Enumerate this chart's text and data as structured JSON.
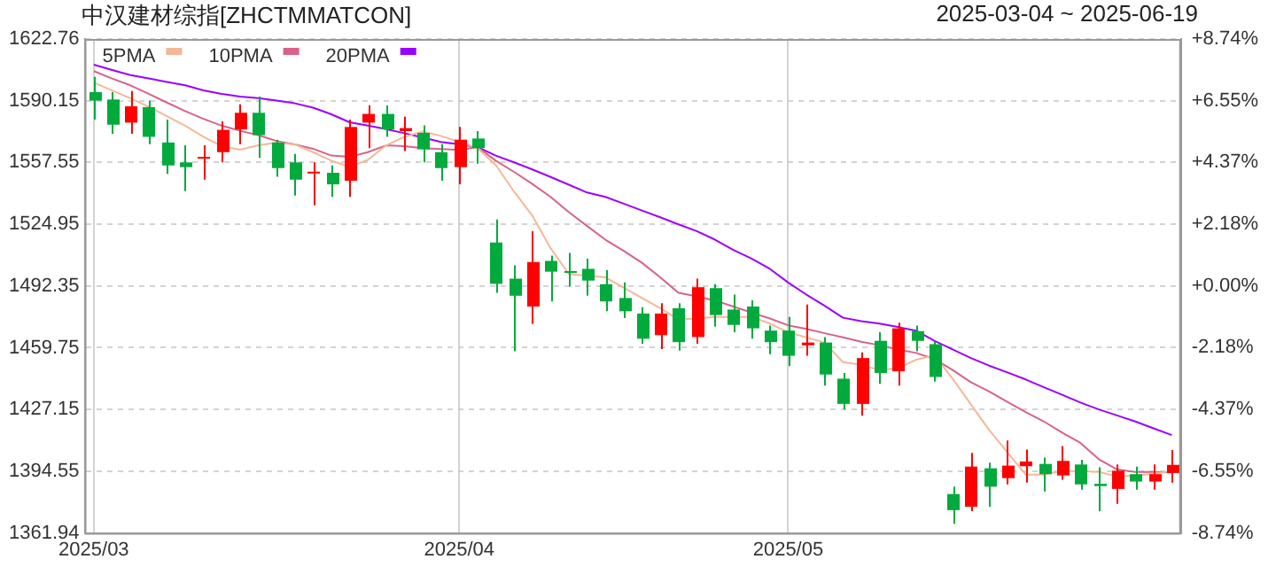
{
  "chart_data": {
    "type": "candlestick",
    "title": "中汉建材综指[ZHCTMMATCON]",
    "subtitle": "2025-03-04 ~ 2025-06-19",
    "categories": [
      "2025/03",
      null,
      null,
      null,
      null,
      null,
      null,
      null,
      null,
      null,
      null,
      null,
      null,
      null,
      null,
      null,
      null,
      null,
      null,
      null,
      "2025/04",
      null,
      null,
      null,
      null,
      null,
      null,
      null,
      null,
      null,
      null,
      null,
      null,
      null,
      null,
      null,
      null,
      null,
      "2025/05",
      null,
      null,
      null,
      null,
      null,
      null,
      null,
      null,
      null,
      null,
      null,
      null,
      null,
      null,
      null,
      null,
      null,
      null,
      null,
      null,
      null
    ],
    "ohlc": [
      [
        1594.7,
        1602.8,
        1580.2,
        1590.2
      ],
      [
        1590.8,
        1594.7,
        1572.7,
        1577.5
      ],
      [
        1578.6,
        1595.3,
        1572.7,
        1587.2
      ],
      [
        1586.8,
        1590.2,
        1567.2,
        1571.1
      ],
      [
        1568.1,
        1580.2,
        1551.5,
        1556.0
      ],
      [
        1557.6,
        1566.6,
        1542.4,
        1555.1
      ],
      [
        1559.6,
        1566.6,
        1548.5,
        1560.5
      ],
      [
        1563.0,
        1579.3,
        1557.6,
        1574.8
      ],
      [
        1575.0,
        1588.3,
        1567.2,
        1583.8
      ],
      [
        1583.8,
        1592.3,
        1560.0,
        1572.0
      ],
      [
        1568.1,
        1569.6,
        1550.0,
        1554.6
      ],
      [
        1557.6,
        1562.1,
        1540.1,
        1548.5
      ],
      [
        1552.1,
        1557.6,
        1534.9,
        1552.7
      ],
      [
        1552.1,
        1556.0,
        1539.4,
        1546.0
      ],
      [
        1547.9,
        1580.2,
        1539.4,
        1576.3
      ],
      [
        1578.6,
        1587.7,
        1565.1,
        1583.2
      ],
      [
        1583.2,
        1587.7,
        1571.1,
        1575.0
      ],
      [
        1574.1,
        1581.7,
        1563.6,
        1575.7
      ],
      [
        1573.2,
        1577.2,
        1557.6,
        1564.5
      ],
      [
        1563.0,
        1567.2,
        1547.9,
        1554.6
      ],
      [
        1555.1,
        1576.3,
        1546.0,
        1569.6
      ],
      [
        1570.2,
        1574.1,
        1556.9,
        1565.1
      ],
      [
        1515.3,
        1527.4,
        1488.7,
        1493.5
      ],
      [
        1496.2,
        1503.2,
        1457.9,
        1487.2
      ],
      [
        1481.5,
        1521.3,
        1472.4,
        1505.0
      ],
      [
        1505.6,
        1508.4,
        1484.2,
        1499.9
      ],
      [
        1500.2,
        1509.8,
        1492.0,
        1499.6
      ],
      [
        1501.4,
        1506.8,
        1487.2,
        1495.2
      ],
      [
        1493.3,
        1500.8,
        1479.0,
        1484.2
      ],
      [
        1486.0,
        1494.2,
        1475.4,
        1479.0
      ],
      [
        1477.8,
        1481.2,
        1461.8,
        1464.5
      ],
      [
        1466.4,
        1483.3,
        1459.1,
        1477.8
      ],
      [
        1480.6,
        1483.3,
        1458.2,
        1462.7
      ],
      [
        1465.4,
        1496.2,
        1461.8,
        1491.7
      ],
      [
        1491.2,
        1493.3,
        1470.9,
        1477.0
      ],
      [
        1479.9,
        1487.8,
        1467.9,
        1471.8
      ],
      [
        1481.5,
        1484.8,
        1464.5,
        1470.0
      ],
      [
        1468.8,
        1471.5,
        1456.4,
        1462.7
      ],
      [
        1468.8,
        1476.0,
        1450.0,
        1455.5
      ],
      [
        1461.0,
        1482.6,
        1455.5,
        1462.5
      ],
      [
        1462.5,
        1465.4,
        1439.8,
        1445.6
      ],
      [
        1443.4,
        1446.4,
        1427.1,
        1430.1
      ],
      [
        1430.1,
        1457.3,
        1423.8,
        1454.3
      ],
      [
        1463.4,
        1467.9,
        1440.7,
        1446.4
      ],
      [
        1447.3,
        1473.0,
        1439.8,
        1470.0
      ],
      [
        1468.5,
        1471.5,
        1457.9,
        1463.4
      ],
      [
        1461.6,
        1463.1,
        1441.9,
        1444.3
      ],
      [
        1382.5,
        1386.4,
        1366.8,
        1374.0
      ],
      [
        1375.8,
        1404.2,
        1373.4,
        1397.0
      ],
      [
        1396.1,
        1399.1,
        1375.8,
        1386.4
      ],
      [
        1390.9,
        1410.8,
        1387.6,
        1397.5
      ],
      [
        1397.2,
        1406.0,
        1388.5,
        1399.7
      ],
      [
        1398.4,
        1401.8,
        1383.9,
        1393.0
      ],
      [
        1392.3,
        1407.8,
        1390.0,
        1400.0
      ],
      [
        1398.1,
        1400.6,
        1384.8,
        1387.6
      ],
      [
        1387.9,
        1396.6,
        1373.4,
        1386.7
      ],
      [
        1385.2,
        1398.1,
        1377.3,
        1394.8
      ],
      [
        1393.0,
        1396.9,
        1384.8,
        1389.1
      ],
      [
        1389.1,
        1398.1,
        1384.8,
        1393.0
      ],
      [
        1393.6,
        1405.7,
        1388.5,
        1397.9
      ]
    ],
    "colors": [
      "#00aa3c",
      "#00aa3c",
      "#ff0000",
      "#00aa3c",
      "#00aa3c",
      "#00aa3c",
      "#ff0000",
      "#ff0000",
      "#ff0000",
      "#00aa3c",
      "#00aa3c",
      "#00aa3c",
      "#ff0000",
      "#00aa3c",
      "#ff0000",
      "#ff0000",
      "#00aa3c",
      "#ff0000",
      "#00aa3c",
      "#00aa3c",
      "#ff0000",
      "#00aa3c",
      "#00aa3c",
      "#00aa3c",
      "#ff0000",
      "#00aa3c",
      "#00aa3c",
      "#00aa3c",
      "#00aa3c",
      "#00aa3c",
      "#00aa3c",
      "#ff0000",
      "#00aa3c",
      "#ff0000",
      "#00aa3c",
      "#00aa3c",
      "#00aa3c",
      "#00aa3c",
      "#00aa3c",
      "#ff0000",
      "#00aa3c",
      "#00aa3c",
      "#ff0000",
      "#00aa3c",
      "#ff0000",
      "#00aa3c",
      "#00aa3c",
      "#00aa3c",
      "#ff0000",
      "#00aa3c",
      "#ff0000",
      "#ff0000",
      "#00aa3c",
      "#ff0000",
      "#00aa3c",
      "#00aa3c",
      "#ff0000",
      "#00aa3c",
      "#ff0000",
      "#ff0000"
    ],
    "series": [
      {
        "name": "5PMA",
        "type": "line",
        "color": "#f5b896",
        "values": [
          1599.8,
          1595.6,
          1591.5,
          1587.0,
          1582.0,
          1577.0,
          1571.1,
          1566.2,
          1564.3,
          1566.6,
          1568.0,
          1567.1,
          1563.0,
          1558.5,
          1555.3,
          1558.9,
          1566.6,
          1571.1,
          1573.9,
          1571.6,
          1568.4,
          1565.1,
          1556.2,
          1542.2,
          1529.5,
          1512.3,
          1498.7,
          1497.8,
          1496.9,
          1491.5,
          1486.0,
          1480.6,
          1474.7,
          1475.2,
          1476.0,
          1476.0,
          1476.0,
          1472.5,
          1467.9,
          1465.2,
          1462.5,
          1452.1,
          1450.7,
          1448.0,
          1448.9,
          1453.4,
          1455.7,
          1443.4,
          1429.9,
          1416.3,
          1404.5,
          1392.8,
          1392.8,
          1394.6,
          1394.6,
          1394.1,
          1391.8,
          1392.3,
          1393.2,
          1394.6
        ]
      },
      {
        "name": "10PMA",
        "type": "line",
        "color": "#d9628a",
        "values": [
          1605.8,
          1601.9,
          1598.3,
          1593.8,
          1589.2,
          1584.7,
          1580.6,
          1577.0,
          1574.3,
          1572.0,
          1568.9,
          1567.1,
          1564.8,
          1561.2,
          1560.5,
          1563.0,
          1566.6,
          1566.2,
          1565.1,
          1564.6,
          1564.2,
          1565.7,
          1558.5,
          1552.6,
          1546.2,
          1539.4,
          1531.3,
          1524.0,
          1516.8,
          1510.9,
          1504.6,
          1496.9,
          1488.7,
          1486.9,
          1484.7,
          1481.5,
          1478.3,
          1475.2,
          1471.6,
          1469.7,
          1467.4,
          1465.2,
          1462.9,
          1461.1,
          1458.8,
          1457.0,
          1453.8,
          1448.0,
          1441.6,
          1436.6,
          1431.2,
          1425.8,
          1420.8,
          1414.9,
          1409.5,
          1400.9,
          1395.5,
          1394.1,
          1394.1,
          1393.9
        ]
      },
      {
        "name": "20PMA",
        "type": "line",
        "color": "#9b00ff",
        "values": [
          1609.2,
          1606.4,
          1603.7,
          1601.9,
          1600.1,
          1598.3,
          1595.6,
          1593.8,
          1592.4,
          1591.5,
          1590.2,
          1588.8,
          1586.5,
          1583.0,
          1578.8,
          1577.0,
          1575.2,
          1573.0,
          1570.7,
          1568.4,
          1567.1,
          1565.7,
          1561.2,
          1557.6,
          1553.9,
          1549.9,
          1545.8,
          1541.7,
          1539.4,
          1535.8,
          1532.2,
          1528.6,
          1524.9,
          1521.3,
          1516.8,
          1511.4,
          1506.8,
          1501.4,
          1494.2,
          1487.8,
          1481.9,
          1475.6,
          1473.8,
          1472.5,
          1470.7,
          1468.8,
          1463.4,
          1458.9,
          1454.3,
          1450.3,
          1446.7,
          1443.0,
          1438.9,
          1434.9,
          1430.8,
          1427.2,
          1424.0,
          1420.8,
          1417.2,
          1413.6
        ]
      }
    ],
    "ylim": [
      1361.94,
      1622.76
    ],
    "yticks": [
      1361.94,
      1394.55,
      1427.15,
      1459.75,
      1492.35,
      1524.95,
      1557.55,
      1590.15,
      1622.76
    ],
    "y2lim": [
      -8.74,
      8.74
    ],
    "y2ticks": [
      {
        "value": -8.74,
        "label": "-8.74%"
      },
      {
        "value": -6.55,
        "label": "-6.55%"
      },
      {
        "value": -4.37,
        "label": "-4.37%"
      },
      {
        "value": -2.18,
        "label": "-2.18%"
      },
      {
        "value": 0,
        "label": "+0.00%"
      },
      {
        "value": 2.18,
        "label": "+2.18%"
      },
      {
        "value": 4.37,
        "label": "+4.37%"
      },
      {
        "value": 6.55,
        "label": "+6.55%"
      },
      {
        "value": 8.74,
        "label": "+8.74%"
      }
    ],
    "grid": true,
    "legend": "top left",
    "marker": "none",
    "line_style": "solid"
  }
}
